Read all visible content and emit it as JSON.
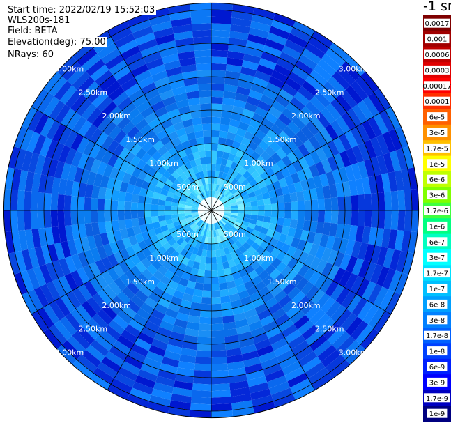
{
  "info": {
    "start_time": "Start time: 2022/02/19 15:52:03",
    "instrument": "WLS200s-181",
    "field": "Field: BETA",
    "elevation": "Elevation(deg): 75.00",
    "nrays": "NRays: 60"
  },
  "chart_data": {
    "type": "heatmap",
    "projection": "polar",
    "field": "BETA",
    "elevation_deg": 75.0,
    "n_rays": 60,
    "max_range_km": 3.1,
    "range_ring_labels": [
      "500m",
      "1.00km",
      "1.50km",
      "2.00km",
      "2.50km",
      "3.00km"
    ],
    "range_ring_values_km": [
      0.5,
      1.0,
      1.5,
      2.0,
      2.5,
      3.0
    ],
    "spokes_deg": [
      0,
      30,
      60,
      90,
      120,
      150,
      180,
      210,
      240,
      270,
      300,
      330
    ],
    "colorbar": {
      "title": "-1 sr",
      "labels": [
        "0.0017",
        "0.001",
        "0.0006",
        "0.0003",
        "0.00017",
        "0.0001",
        "6e-5",
        "3e-5",
        "1.7e-5",
        "1e-5",
        "6e-6",
        "3e-6",
        "1.7e-6",
        "1e-6",
        "6e-7",
        "3e-7",
        "1.7e-7",
        "1e-7",
        "6e-8",
        "3e-8",
        "1.7e-8",
        "1e-8",
        "6e-9",
        "3e-9",
        "1.7e-9",
        "1e-9"
      ],
      "colors": [
        "#7f0000",
        "#a00000",
        "#c00000",
        "#e00000",
        "#ff0000",
        "#ff3000",
        "#ff6000",
        "#ff9000",
        "#ffc000",
        "#ffff00",
        "#c0ff00",
        "#80ff00",
        "#40ff40",
        "#00ff80",
        "#00ffc0",
        "#00ffff",
        "#00e0ff",
        "#00c0ff",
        "#00a0ff",
        "#0080ff",
        "#0060ff",
        "#0040ff",
        "#0020ff",
        "#0000ff",
        "#0000c0",
        "#000080"
      ]
    }
  }
}
